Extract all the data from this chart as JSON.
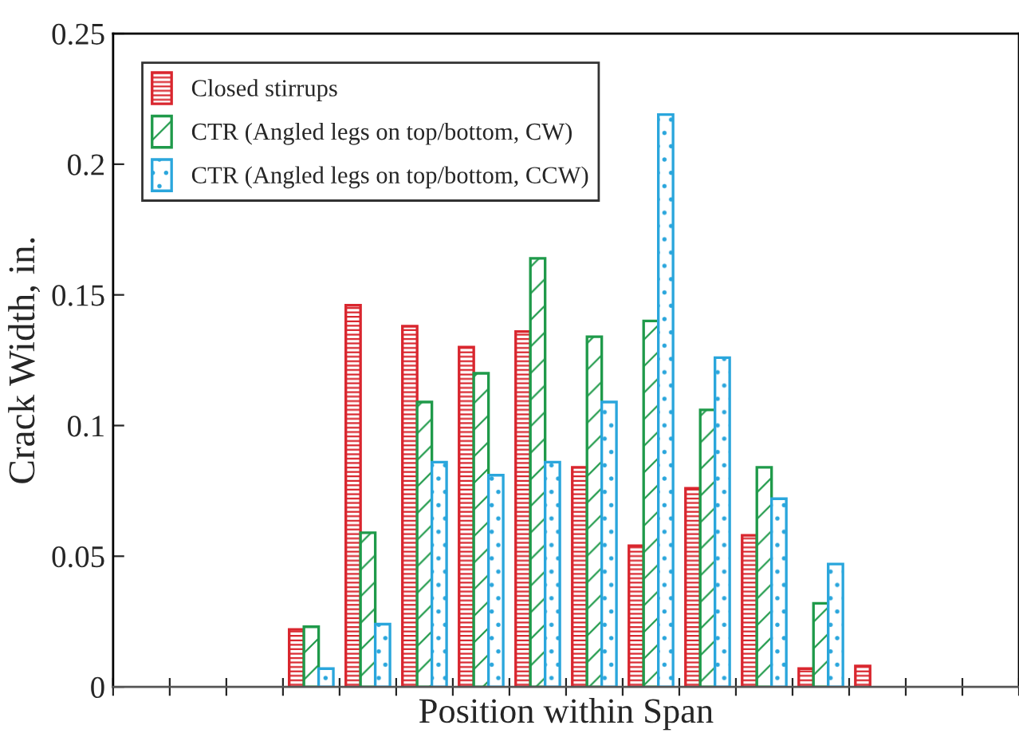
{
  "chart_data": {
    "type": "bar",
    "xlabel": "Position within Span",
    "ylabel": "Crack Width, in.",
    "categories": [
      null,
      null,
      null,
      null,
      null,
      null,
      null,
      null,
      null,
      null,
      null,
      null,
      null,
      null,
      null,
      null
    ],
    "series": [
      {
        "name": "Closed stirrups",
        "color": "#d9262e",
        "values": [
          null,
          null,
          null,
          0.022,
          0.146,
          0.138,
          0.13,
          0.136,
          0.084,
          0.054,
          0.076,
          0.058,
          0.007,
          0.008,
          null,
          null
        ]
      },
      {
        "name": "CTR (Angled legs on top/bottom, CW)",
        "color": "#1f9a4a",
        "values": [
          null,
          null,
          null,
          0.023,
          0.059,
          0.109,
          0.12,
          0.164,
          0.134,
          0.14,
          0.106,
          0.084,
          0.032,
          null,
          null,
          null
        ]
      },
      {
        "name": "CTR (Angled legs on top/bottom, CCW)",
        "color": "#2aa6dc",
        "values": [
          null,
          null,
          null,
          0.007,
          0.024,
          0.086,
          0.081,
          0.086,
          0.109,
          0.219,
          0.126,
          0.072,
          0.047,
          null,
          null,
          null
        ]
      }
    ],
    "ylim": [
      0,
      0.25
    ],
    "yticks": [
      0,
      0.05,
      0.1,
      0.15,
      0.2,
      0.25
    ],
    "tick_labels": "y",
    "grid": false,
    "legend": "top left"
  }
}
